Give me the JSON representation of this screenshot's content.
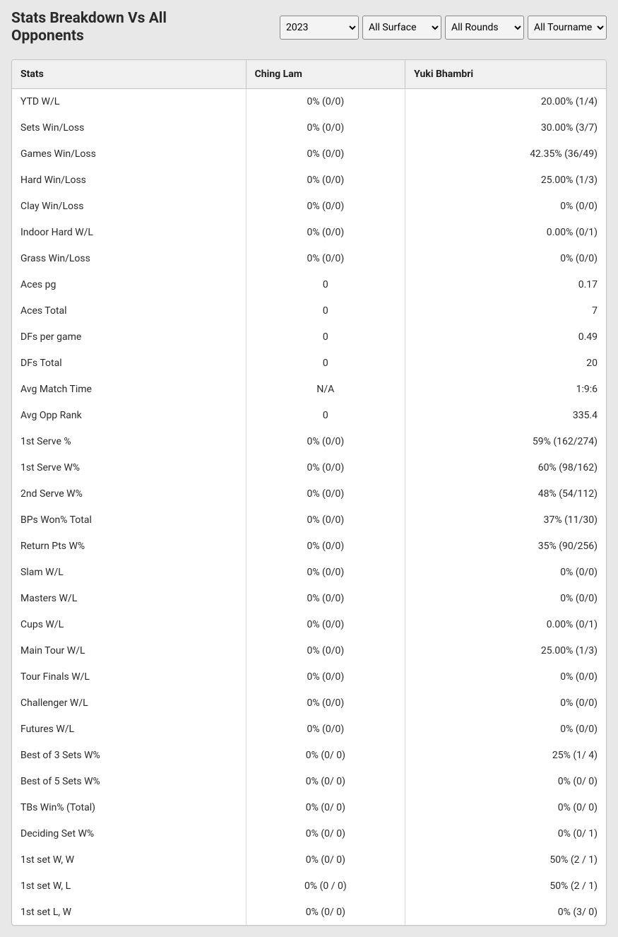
{
  "header": {
    "title": "Stats Breakdown Vs All Opponents"
  },
  "filters": {
    "year": {
      "selected": "2023",
      "options": [
        "2023"
      ]
    },
    "surface": {
      "selected": "All Surface",
      "options": [
        "All Surface"
      ]
    },
    "round": {
      "selected": "All Rounds",
      "options": [
        "All Rounds"
      ]
    },
    "tournament": {
      "selected": "All Tournaments",
      "options": [
        "All Tournaments"
      ]
    }
  },
  "table": {
    "columns": [
      "Stats",
      "Ching Lam",
      "Yuki Bhambri"
    ],
    "rows": [
      {
        "stat": "YTD W/L",
        "p1": "0% (0/0)",
        "p2": "20.00% (1/4)"
      },
      {
        "stat": "Sets Win/Loss",
        "p1": "0% (0/0)",
        "p2": "30.00% (3/7)"
      },
      {
        "stat": "Games Win/Loss",
        "p1": "0% (0/0)",
        "p2": "42.35% (36/49)"
      },
      {
        "stat": "Hard Win/Loss",
        "p1": "0% (0/0)",
        "p2": "25.00% (1/3)"
      },
      {
        "stat": "Clay Win/Loss",
        "p1": "0% (0/0)",
        "p2": "0% (0/0)"
      },
      {
        "stat": "Indoor Hard W/L",
        "p1": "0% (0/0)",
        "p2": "0.00% (0/1)"
      },
      {
        "stat": "Grass Win/Loss",
        "p1": "0% (0/0)",
        "p2": "0% (0/0)"
      },
      {
        "stat": "Aces pg",
        "p1": "0",
        "p2": "0.17"
      },
      {
        "stat": "Aces Total",
        "p1": "0",
        "p2": "7"
      },
      {
        "stat": "DFs per game",
        "p1": "0",
        "p2": "0.49"
      },
      {
        "stat": "DFs Total",
        "p1": "0",
        "p2": "20"
      },
      {
        "stat": "Avg Match Time",
        "p1": "N/A",
        "p2": "1:9:6"
      },
      {
        "stat": "Avg Opp Rank",
        "p1": "0",
        "p2": "335.4"
      },
      {
        "stat": "1st Serve %",
        "p1": "0% (0/0)",
        "p2": "59% (162/274)"
      },
      {
        "stat": "1st Serve W%",
        "p1": "0% (0/0)",
        "p2": "60% (98/162)"
      },
      {
        "stat": "2nd Serve W%",
        "p1": "0% (0/0)",
        "p2": "48% (54/112)"
      },
      {
        "stat": "BPs Won% Total",
        "p1": "0% (0/0)",
        "p2": "37% (11/30)"
      },
      {
        "stat": "Return Pts W%",
        "p1": "0% (0/0)",
        "p2": "35% (90/256)"
      },
      {
        "stat": "Slam W/L",
        "p1": "0% (0/0)",
        "p2": "0% (0/0)"
      },
      {
        "stat": "Masters W/L",
        "p1": "0% (0/0)",
        "p2": "0% (0/0)"
      },
      {
        "stat": "Cups W/L",
        "p1": "0% (0/0)",
        "p2": "0.00% (0/1)"
      },
      {
        "stat": "Main Tour W/L",
        "p1": "0% (0/0)",
        "p2": "25.00% (1/3)"
      },
      {
        "stat": "Tour Finals W/L",
        "p1": "0% (0/0)",
        "p2": "0% (0/0)"
      },
      {
        "stat": "Challenger W/L",
        "p1": "0% (0/0)",
        "p2": "0% (0/0)"
      },
      {
        "stat": "Futures W/L",
        "p1": "0% (0/0)",
        "p2": "0% (0/0)"
      },
      {
        "stat": "Best of 3 Sets W%",
        "p1": "0% (0/ 0)",
        "p2": "25% (1/ 4)"
      },
      {
        "stat": "Best of 5 Sets W%",
        "p1": "0% (0/ 0)",
        "p2": "0% (0/ 0)"
      },
      {
        "stat": "TBs Win% (Total)",
        "p1": "0% (0/ 0)",
        "p2": "0% (0/ 0)"
      },
      {
        "stat": "Deciding Set W%",
        "p1": "0% (0/ 0)",
        "p2": "0% (0/ 1)"
      },
      {
        "stat": "1st set W, W",
        "p1": "0% (0/ 0)",
        "p2": "50% (2 / 1)"
      },
      {
        "stat": "1st set W, L",
        "p1": "0% (0 / 0)",
        "p2": "50% (2 / 1)"
      },
      {
        "stat": "1st set L, W",
        "p1": "0% (0/ 0)",
        "p2": "0% (3/ 0)"
      }
    ]
  },
  "colors": {
    "page_bg": "#e8e8e8",
    "card_bg": "#ffffff",
    "header_bg": "#f0f0f0",
    "border": "#c4c4c4",
    "cell_divider": "#d8d8d8",
    "text": "#2a2a2a"
  }
}
